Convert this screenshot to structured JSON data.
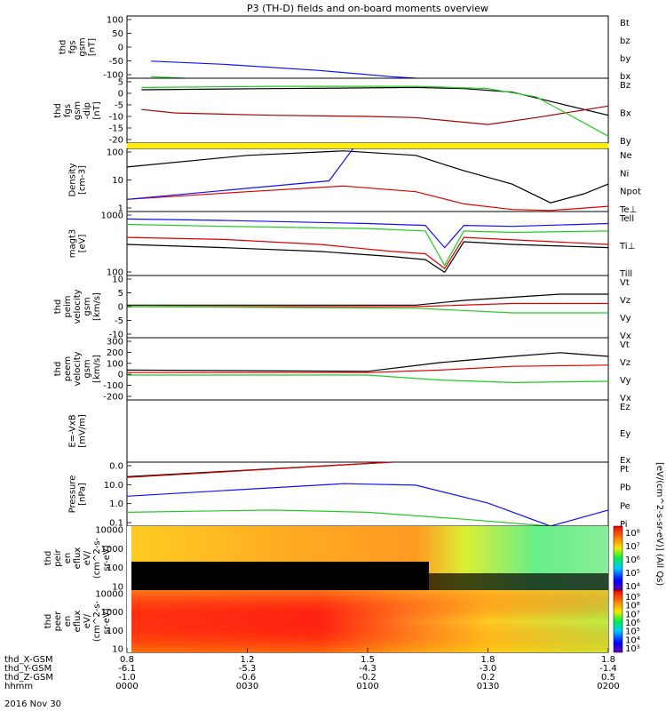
{
  "chart_data": {
    "type": "line",
    "title": "P3 (TH-D) fields and on-board moments overview",
    "panels": [
      {
        "ylabel": [
          "thd",
          "fgs",
          "gsm",
          "[nT]"
        ],
        "ylim": [
          -100,
          100
        ],
        "ticks": [
          "100",
          "50",
          "0",
          "-50",
          "-100"
        ],
        "legend": [
          {
            "name": "Bt",
            "color": "#000000"
          },
          {
            "name": "bz",
            "color": "#e00000"
          },
          {
            "name": "by",
            "color": "#22cc22"
          },
          {
            "name": "bx",
            "color": "#1010ff"
          }
        ],
        "series": [
          {
            "name": "bx",
            "color": "#1010ff",
            "x": [
              0.05,
              0.2,
              0.4,
              0.55,
              0.6
            ],
            "y": [
              -45,
              -55,
              -75,
              -95,
              -100
            ]
          },
          {
            "name": "by",
            "color": "#22cc22",
            "x": [
              0.05,
              0.12
            ],
            "y": [
              -95,
              -100
            ]
          }
        ]
      },
      {
        "ylabel": [
          "thd",
          "fgs",
          "gsm",
          "-dip",
          "[nT]"
        ],
        "ylim": [
          -20,
          8
        ],
        "ticks": [
          "5",
          "0",
          "-5",
          "-10",
          "-15",
          "-20"
        ],
        "legend": [
          {
            "name": "Bz",
            "color": "#aa0000"
          },
          {
            "name": "Bx",
            "color": "#000000"
          },
          {
            "name": "By",
            "color": "#22cc22"
          }
        ],
        "series": [
          {
            "name": "Bx",
            "color": "#000000",
            "x": [
              0.03,
              0.3,
              0.6,
              0.7,
              0.8,
              0.9,
              1.0
            ],
            "y": [
              3,
              3.5,
              4,
              3.5,
              2,
              -3,
              -8
            ]
          },
          {
            "name": "Bz",
            "color": "#aa0000",
            "x": [
              0.03,
              0.1,
              0.3,
              0.5,
              0.6,
              0.75,
              0.85,
              1.0
            ],
            "y": [
              -5.5,
              -7,
              -8,
              -8.5,
              -9,
              -12,
              -9,
              -4
            ]
          },
          {
            "name": "By",
            "color": "#22cc22",
            "x": [
              0.03,
              0.3,
              0.6,
              0.75,
              0.85,
              1.0
            ],
            "y": [
              4,
              4.5,
              4.5,
              3.5,
              0,
              -17
            ]
          }
        ]
      },
      {
        "ylabel": [
          "Density",
          "[cm-3]"
        ],
        "ylim": [
          0.5,
          150
        ],
        "log": true,
        "ticks": [
          "100",
          "10",
          "1"
        ],
        "legend": [
          {
            "name": "Ne",
            "color": "#e00000"
          },
          {
            "name": "Ni",
            "color": "#000000"
          },
          {
            "name": "Npot",
            "color": "#1010ff"
          },
          {
            "name": "Te⊥",
            "color": "#e00000"
          }
        ],
        "series": [
          {
            "name": "Ni",
            "color": "#000000",
            "x": [
              0,
              0.25,
              0.45,
              0.6,
              0.7,
              0.8,
              0.88,
              0.95,
              1.0
            ],
            "y": [
              28,
              80,
              120,
              80,
              20,
              6,
              1.1,
              2.5,
              6
            ]
          },
          {
            "name": "Ne",
            "color": "#e00000",
            "x": [
              0,
              0.25,
              0.45,
              0.6,
              0.7,
              0.8,
              0.88,
              1.0
            ],
            "y": [
              1.5,
              3,
              5,
              3,
              1,
              0.6,
              0.55,
              0.8
            ]
          },
          {
            "name": "Npot",
            "color": "#1010ff",
            "x": [
              0,
              0.42,
              0.47
            ],
            "y": [
              1.5,
              8,
              150
            ]
          }
        ]
      },
      {
        "ylabel": [
          "magt3",
          "[eV]"
        ],
        "ylim": [
          100,
          4000
        ],
        "log": true,
        "ticks": [
          "1000",
          "100"
        ],
        "legend": [
          {
            "name": "Tell",
            "color": "#000000"
          },
          {
            "name": "Ti⊥",
            "color": "#e00000"
          },
          {
            "name": "Till",
            "color": "#22cc22"
          }
        ],
        "series": [
          {
            "name": "Ti⊥",
            "color": "#1010ff",
            "x": [
              0,
              0.2,
              0.5,
              0.62,
              0.66,
              0.7,
              0.8,
              1.0
            ],
            "y": [
              2600,
              2400,
              2000,
              1800,
              500,
              1800,
              1700,
              2000
            ]
          },
          {
            "name": "Till",
            "color": "#22cc22",
            "x": [
              0,
              0.2,
              0.5,
              0.62,
              0.66,
              0.7,
              0.8,
              1.0
            ],
            "y": [
              1900,
              1700,
              1500,
              1300,
              180,
              1300,
              1200,
              1300
            ]
          },
          {
            "name": "Te⊥",
            "color": "#e00000",
            "x": [
              0,
              0.2,
              0.4,
              0.55,
              0.62,
              0.66,
              0.7,
              1.0
            ],
            "y": [
              900,
              800,
              600,
              400,
              350,
              150,
              900,
              600
            ]
          },
          {
            "name": "Tell",
            "color": "#000000",
            "x": [
              0,
              0.2,
              0.4,
              0.55,
              0.62,
              0.66,
              0.7,
              0.8,
              1.0
            ],
            "y": [
              600,
              500,
              400,
              300,
              250,
              120,
              700,
              600,
              500
            ]
          }
        ]
      },
      {
        "ylabel": [
          "thd",
          "peim",
          "velocity",
          "gsm",
          "[km/s]"
        ],
        "ylim": [
          -10,
          10
        ],
        "ticks": [
          "10",
          "5",
          "0",
          "-5",
          "-10"
        ],
        "legend": [
          {
            "name": "Vt",
            "color": "#000000"
          },
          {
            "name": "Vz",
            "color": "#e00000"
          },
          {
            "name": "Vy",
            "color": "#22cc22"
          },
          {
            "name": "Vx",
            "color": "#1010ff"
          }
        ],
        "series": [
          {
            "name": "Vt",
            "color": "#000000",
            "x": [
              0,
              0.6,
              0.7,
              0.8,
              0.9,
              1.0
            ],
            "y": [
              0.5,
              0.5,
              2,
              3,
              4,
              4
            ]
          },
          {
            "name": "Vz",
            "color": "#e00000",
            "x": [
              0,
              0.6,
              0.8,
              1.0
            ],
            "y": [
              0,
              0,
              1,
              1
            ]
          },
          {
            "name": "Vy",
            "color": "#22cc22",
            "x": [
              0,
              0.6,
              0.8,
              1.0
            ],
            "y": [
              0,
              -0.5,
              -2,
              -2
            ]
          }
        ]
      },
      {
        "ylabel": [
          "thd",
          "peem",
          "velocity",
          "gsm",
          "[km/s]"
        ],
        "ylim": [
          -200,
          300
        ],
        "ticks": [
          "300",
          "200",
          "100",
          "0",
          "-100",
          "-200"
        ],
        "legend": [
          {
            "name": "Vt",
            "color": "#000000"
          },
          {
            "name": "Vz",
            "color": "#e00000"
          },
          {
            "name": "Vy",
            "color": "#22cc22"
          },
          {
            "name": "Vx",
            "color": "#1010ff"
          }
        ],
        "series": [
          {
            "name": "Vt",
            "color": "#000000",
            "x": [
              0,
              0.5,
              0.65,
              0.8,
              0.9,
              1.0
            ],
            "y": [
              40,
              30,
              100,
              150,
              180,
              150
            ]
          },
          {
            "name": "Vz",
            "color": "#e00000",
            "x": [
              0,
              0.5,
              0.65,
              0.8,
              1.0
            ],
            "y": [
              20,
              20,
              40,
              70,
              80
            ]
          },
          {
            "name": "Vy",
            "color": "#22cc22",
            "x": [
              0,
              0.5,
              0.65,
              0.8,
              1.0
            ],
            "y": [
              0,
              0,
              -40,
              -60,
              -50
            ]
          }
        ]
      },
      {
        "ylabel": [
          "E=-VxB",
          "[mV/m]"
        ],
        "ylim": [
          0,
          1
        ],
        "ticks": [],
        "legend": [
          {
            "name": "Ez",
            "color": "#e00000"
          },
          {
            "name": "Ey",
            "color": "#22cc22"
          },
          {
            "name": "Ex",
            "color": "#1010ff"
          }
        ],
        "series": []
      },
      {
        "ylabel": [
          "Pressure",
          "[nPa]"
        ],
        "ylim": [
          0.05,
          30
        ],
        "log": true,
        "ticks": [
          "0.0",
          "10.0",
          "1.0",
          "0.1"
        ],
        "legend": [
          {
            "name": "Pt",
            "color": "#000000"
          },
          {
            "name": "Pb",
            "color": "#e00000"
          },
          {
            "name": "Pe",
            "color": "#22cc22"
          },
          {
            "name": "Pi",
            "color": "#1010ff"
          }
        ],
        "series": [
          {
            "name": "Pt",
            "color": "#000000",
            "x": [
              0,
              0.55
            ],
            "y": [
              7,
              30
            ]
          },
          {
            "name": "Pb",
            "color": "#e00000",
            "x": [
              0,
              0.55
            ],
            "y": [
              6.5,
              30
            ]
          },
          {
            "name": "Pi",
            "color": "#1010ff",
            "x": [
              0,
              0.45,
              0.6,
              0.75,
              0.88,
              1.0
            ],
            "y": [
              1,
              3.5,
              3,
              0.5,
              0.05,
              0.25
            ]
          },
          {
            "name": "Pe",
            "color": "#22cc22",
            "x": [
              0,
              0.3,
              0.5,
              0.7,
              0.88,
              1.0
            ],
            "y": [
              0.2,
              0.25,
              0.2,
              0.1,
              0.05,
              0.05
            ]
          }
        ]
      },
      {
        "ylabel": [
          "thd",
          "peir",
          "en",
          "eflux",
          "eV/",
          "(cm^2-s-",
          "sr-eV)"
        ],
        "ylim": [
          5,
          20000
        ],
        "log": true,
        "ticks": [
          "10000",
          "1000",
          "100",
          "10"
        ],
        "type": "heatmap",
        "colorbar_ticks": [
          "10⁸",
          "10⁷",
          "10⁶",
          "10⁵",
          "10⁴"
        ],
        "colorbar_label": "[eV/(cm^2-s-sr-eV)] (All Qs)"
      },
      {
        "ylabel": [
          "thd",
          "peer",
          "en",
          "eflux",
          "eV/",
          "(cm^2-s-",
          "sr-eV)"
        ],
        "ylim": [
          5,
          20000
        ],
        "log": true,
        "ticks": [
          "10000",
          "1000",
          "100",
          "10"
        ],
        "type": "heatmap",
        "colorbar_ticks": [
          "10⁹",
          "10⁸",
          "10⁷",
          "10⁶",
          "10⁵",
          "10⁴",
          "10³"
        ]
      }
    ],
    "x_axis": {
      "rows": [
        {
          "label": "thd_X-GSM",
          "values": [
            "0.8",
            "1.2",
            "1.5",
            "1.8",
            "1.8"
          ]
        },
        {
          "label": "thd_Y-GSM",
          "values": [
            "-6.1",
            "-5.3",
            "-4.3",
            "-3.0",
            "-1.4"
          ]
        },
        {
          "label": "thd_Z-GSM",
          "values": [
            "-1.0",
            "-0.6",
            "-0.2",
            "0.2",
            "0.5"
          ]
        },
        {
          "label": "hhmm",
          "values": [
            "0000",
            "0030",
            "0100",
            "0130",
            "0200"
          ]
        }
      ],
      "date": "2016 Nov 30"
    },
    "colorbar_unit": "[eV/(cm^2-s-sr-eV)] (All Qs)"
  }
}
